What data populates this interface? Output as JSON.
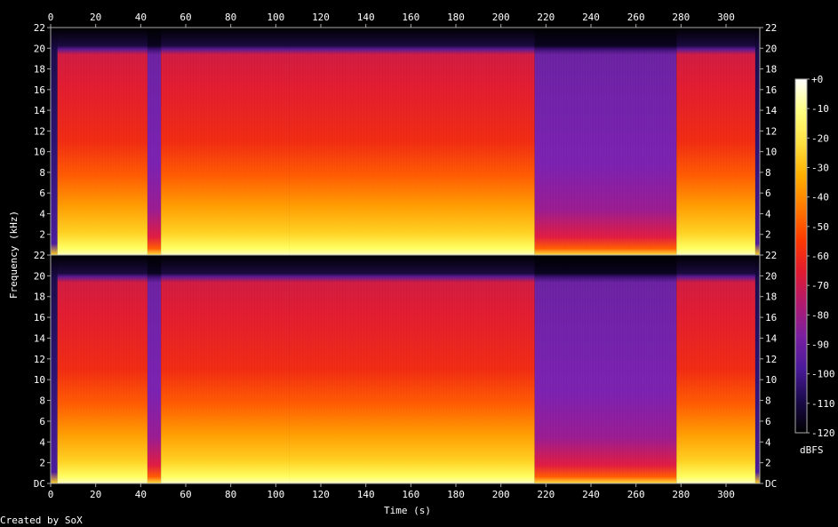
{
  "chart_data": {
    "type": "heatmap",
    "xlabel": "Time (s)",
    "ylabel": "Frequency (kHz)",
    "xlim": [
      0,
      315
    ],
    "ylim": [
      0,
      22
    ],
    "x_ticks": [
      0,
      20,
      40,
      60,
      80,
      100,
      120,
      140,
      160,
      180,
      200,
      220,
      240,
      260,
      280,
      300
    ],
    "y_tick_labels_top": [
      "22",
      "20",
      "18",
      "16",
      "14",
      "12",
      "10",
      "8",
      "6",
      "4",
      "2"
    ],
    "y_tick_labels_bottom": [
      "22",
      "20",
      "18",
      "16",
      "14",
      "12",
      "10",
      "8",
      "6",
      "4",
      "2",
      "DC"
    ],
    "channels": 2,
    "colorbar": {
      "label": "dBFS",
      "ticks": [
        "+0",
        "-10",
        "-20",
        "-30",
        "-40",
        "-50",
        "-60",
        "-70",
        "-80",
        "-90",
        "-100",
        "-110",
        "-120"
      ],
      "range": [
        -120,
        0
      ]
    },
    "segments": [
      {
        "t0": 0,
        "t1": 3,
        "level": "near-silent"
      },
      {
        "t0": 3,
        "t1": 43,
        "level": "loud",
        "cutoff_khz": 20
      },
      {
        "t0": 43,
        "t1": 49,
        "level": "quiet"
      },
      {
        "t0": 49,
        "t1": 106,
        "level": "loud",
        "cutoff_khz": 20
      },
      {
        "t0": 106,
        "t1": 215,
        "level": "loud",
        "cutoff_khz": 20
      },
      {
        "t0": 215,
        "t1": 278,
        "level": "quiet",
        "cutoff_khz": 20
      },
      {
        "t0": 278,
        "t1": 313,
        "level": "loud",
        "cutoff_khz": 20
      },
      {
        "t0": 313,
        "t1": 315,
        "level": "near-silent"
      }
    ],
    "palette": [
      "#000000",
      "#1a0a4a",
      "#4a1a9a",
      "#7a1fa0",
      "#b01a70",
      "#e01a30",
      "#ff3a00",
      "#ff7a00",
      "#ffb000",
      "#ffe040",
      "#ffff80",
      "#ffffff"
    ]
  },
  "footer": {
    "credit": "Created by SoX"
  }
}
